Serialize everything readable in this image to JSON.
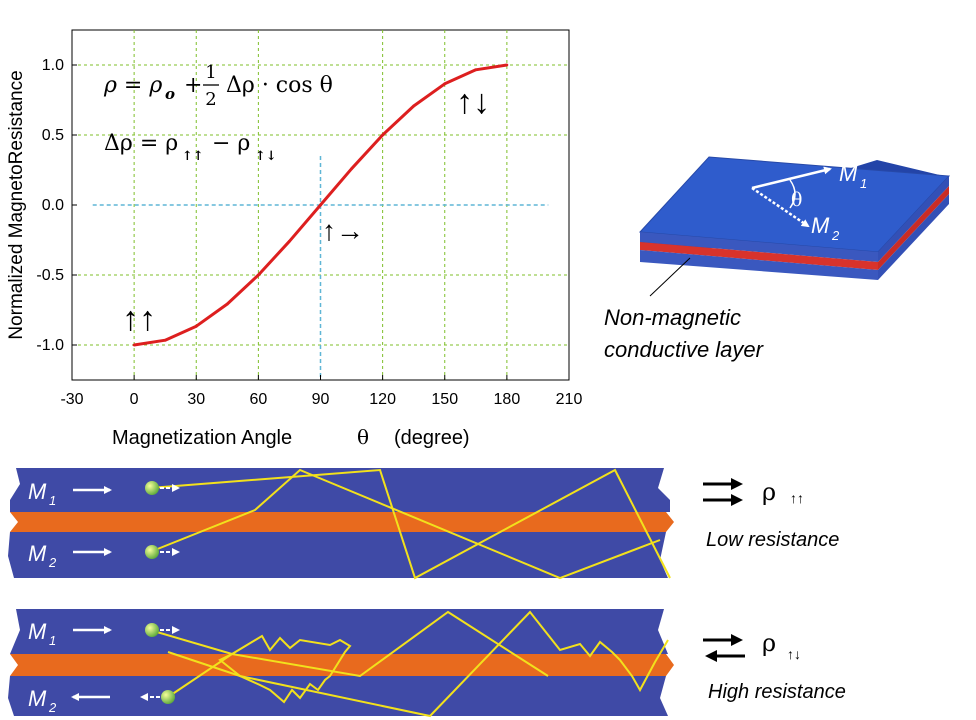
{
  "colors": {
    "curve": "#dd1f1f",
    "grid": "#7fbf2a",
    "crosshair": "#5fb6d6",
    "layer_blue": "#3f4aa6",
    "layer_orange": "#e86a1e",
    "slab_top": "#2f59c8",
    "slab_red": "#d8332c",
    "electron_path": "#f2e11c",
    "electron": "#9fd04a"
  },
  "chart_data": {
    "type": "line",
    "xlabel": "Magnetization Angle",
    "xlabel_symbol": "θ",
    "xlabel_unit": "(degree)",
    "ylabel": "Normalized  MagnetoResistance",
    "xlim": [
      -30,
      210
    ],
    "ylim": [
      -1.25,
      1.25
    ],
    "xticks": [
      -30,
      0,
      30,
      60,
      90,
      120,
      150,
      180,
      210
    ],
    "xtick_labels": [
      "-30",
      "0",
      "30",
      "60",
      "90",
      "120",
      "150",
      "180",
      "210"
    ],
    "yticks": [
      -1.0,
      -0.5,
      0.0,
      0.5,
      1.0
    ],
    "ytick_labels": [
      "-1.0",
      "-0.5",
      "0.0",
      "0.5",
      "1.0"
    ],
    "grid": true,
    "series": [
      {
        "x": [
          0,
          15,
          30,
          45,
          60,
          75,
          90,
          105,
          120,
          135,
          150,
          165,
          180
        ],
        "y": [
          -1.0,
          -0.966,
          -0.866,
          -0.707,
          -0.5,
          -0.259,
          0.0,
          0.259,
          0.5,
          0.707,
          0.866,
          0.966,
          1.0
        ]
      }
    ],
    "equations": {
      "eq1_lhs": "ρ = ρ",
      "eq1_sub": "o",
      "eq1_plus": "+",
      "eq1_num": "1",
      "eq1_den": "2",
      "eq1_rest": "Δρ · cos θ",
      "eq2_lhs": "Δρ = ρ",
      "eq2_sub1": "↑↑",
      "eq2_minus": "− ρ",
      "eq2_sub2": "↑↓"
    },
    "annotations": {
      "at_0": "↑↑",
      "at_90": "↑→",
      "at_180": "↑↓"
    }
  },
  "slab": {
    "m1_label": "M",
    "m1_sub": "1",
    "m2_label": "M",
    "m2_sub": "2",
    "theta": "θ",
    "caption_line1": "Non-magnetic",
    "caption_line2": "conductive layer"
  },
  "parallel_panel": {
    "m1_label": "M",
    "m1_sub": "1",
    "m2_label": "M",
    "m2_sub": "2",
    "rho": "ρ",
    "rho_sub": "↑↑",
    "caption": "Low resistance"
  },
  "antiparallel_panel": {
    "m1_label": "M",
    "m1_sub": "1",
    "m2_label": "M",
    "m2_sub": "2",
    "rho": "ρ",
    "rho_sub": "↑↓",
    "caption": "High resistance"
  }
}
